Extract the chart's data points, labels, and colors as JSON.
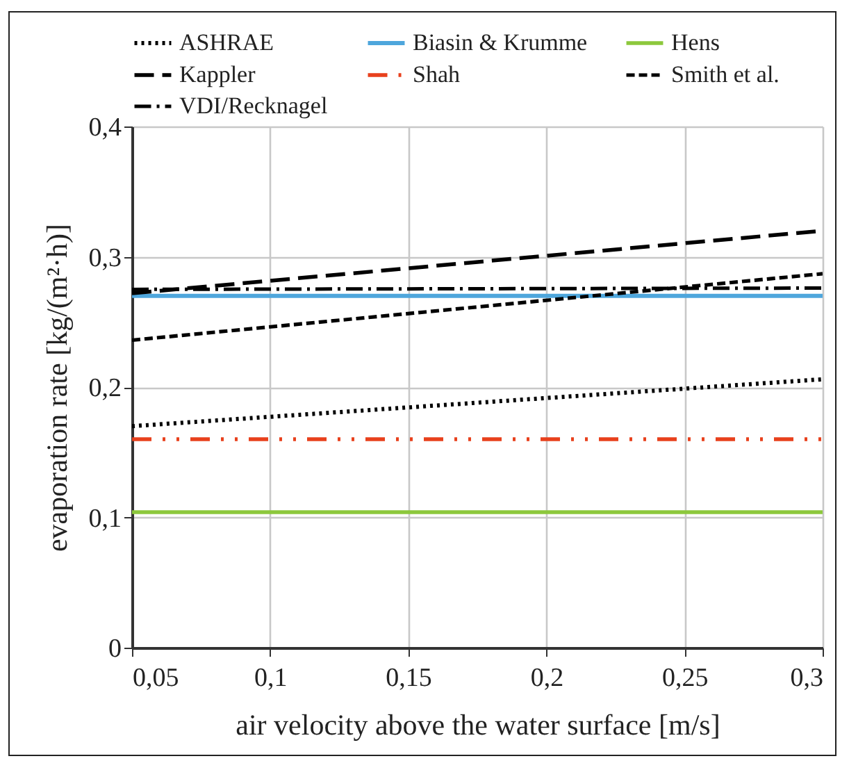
{
  "chart_data": {
    "type": "line",
    "xlabel": "air velocity above the water surface [m/s]",
    "ylabel": "evaporation rate [kg/(m²·h)]",
    "x": [
      0.05,
      0.3
    ],
    "series": [
      {
        "name": "ASHRAE",
        "color": "#000000",
        "line_style": "dotted",
        "values": [
          0.17,
          0.206
        ]
      },
      {
        "name": "Biasin & Krumme",
        "color": "#4ea6dc",
        "line_style": "solid",
        "values": [
          0.27,
          0.27
        ]
      },
      {
        "name": "Hens",
        "color": "#8cc83c",
        "line_style": "solid",
        "values": [
          0.104,
          0.104
        ]
      },
      {
        "name": "Kappler",
        "color": "#000000",
        "line_style": "longdash",
        "values": [
          0.272,
          0.32
        ]
      },
      {
        "name": "Shah",
        "color": "#e8401c",
        "line_style": "dashdotdot",
        "values": [
          0.16,
          0.16
        ]
      },
      {
        "name": "Smith et al.",
        "color": "#000000",
        "line_style": "dashed",
        "values": [
          0.236,
          0.287
        ]
      },
      {
        "name": "VDI/Recknagel",
        "color": "#000000",
        "line_style": "dashdot",
        "values": [
          0.275,
          0.276
        ]
      }
    ],
    "xlim": [
      0.05,
      0.3
    ],
    "xticks": [
      {
        "value": 0.05,
        "label": "0,05"
      },
      {
        "value": 0.1,
        "label": "0,1"
      },
      {
        "value": 0.15,
        "label": "0,15"
      },
      {
        "value": 0.2,
        "label": "0,2"
      },
      {
        "value": 0.25,
        "label": "0,25"
      },
      {
        "value": 0.3,
        "label": "0,3"
      }
    ],
    "ylim": [
      0,
      0.4
    ],
    "yticks": [
      0,
      {
        "value": 0.1,
        "label": "0,1"
      },
      {
        "value": 0.2,
        "label": "0,2"
      },
      {
        "value": 0.3,
        "label": "0,3"
      },
      {
        "value": 0.4,
        "label": "0,4"
      }
    ],
    "grid": true,
    "legend": "top"
  }
}
